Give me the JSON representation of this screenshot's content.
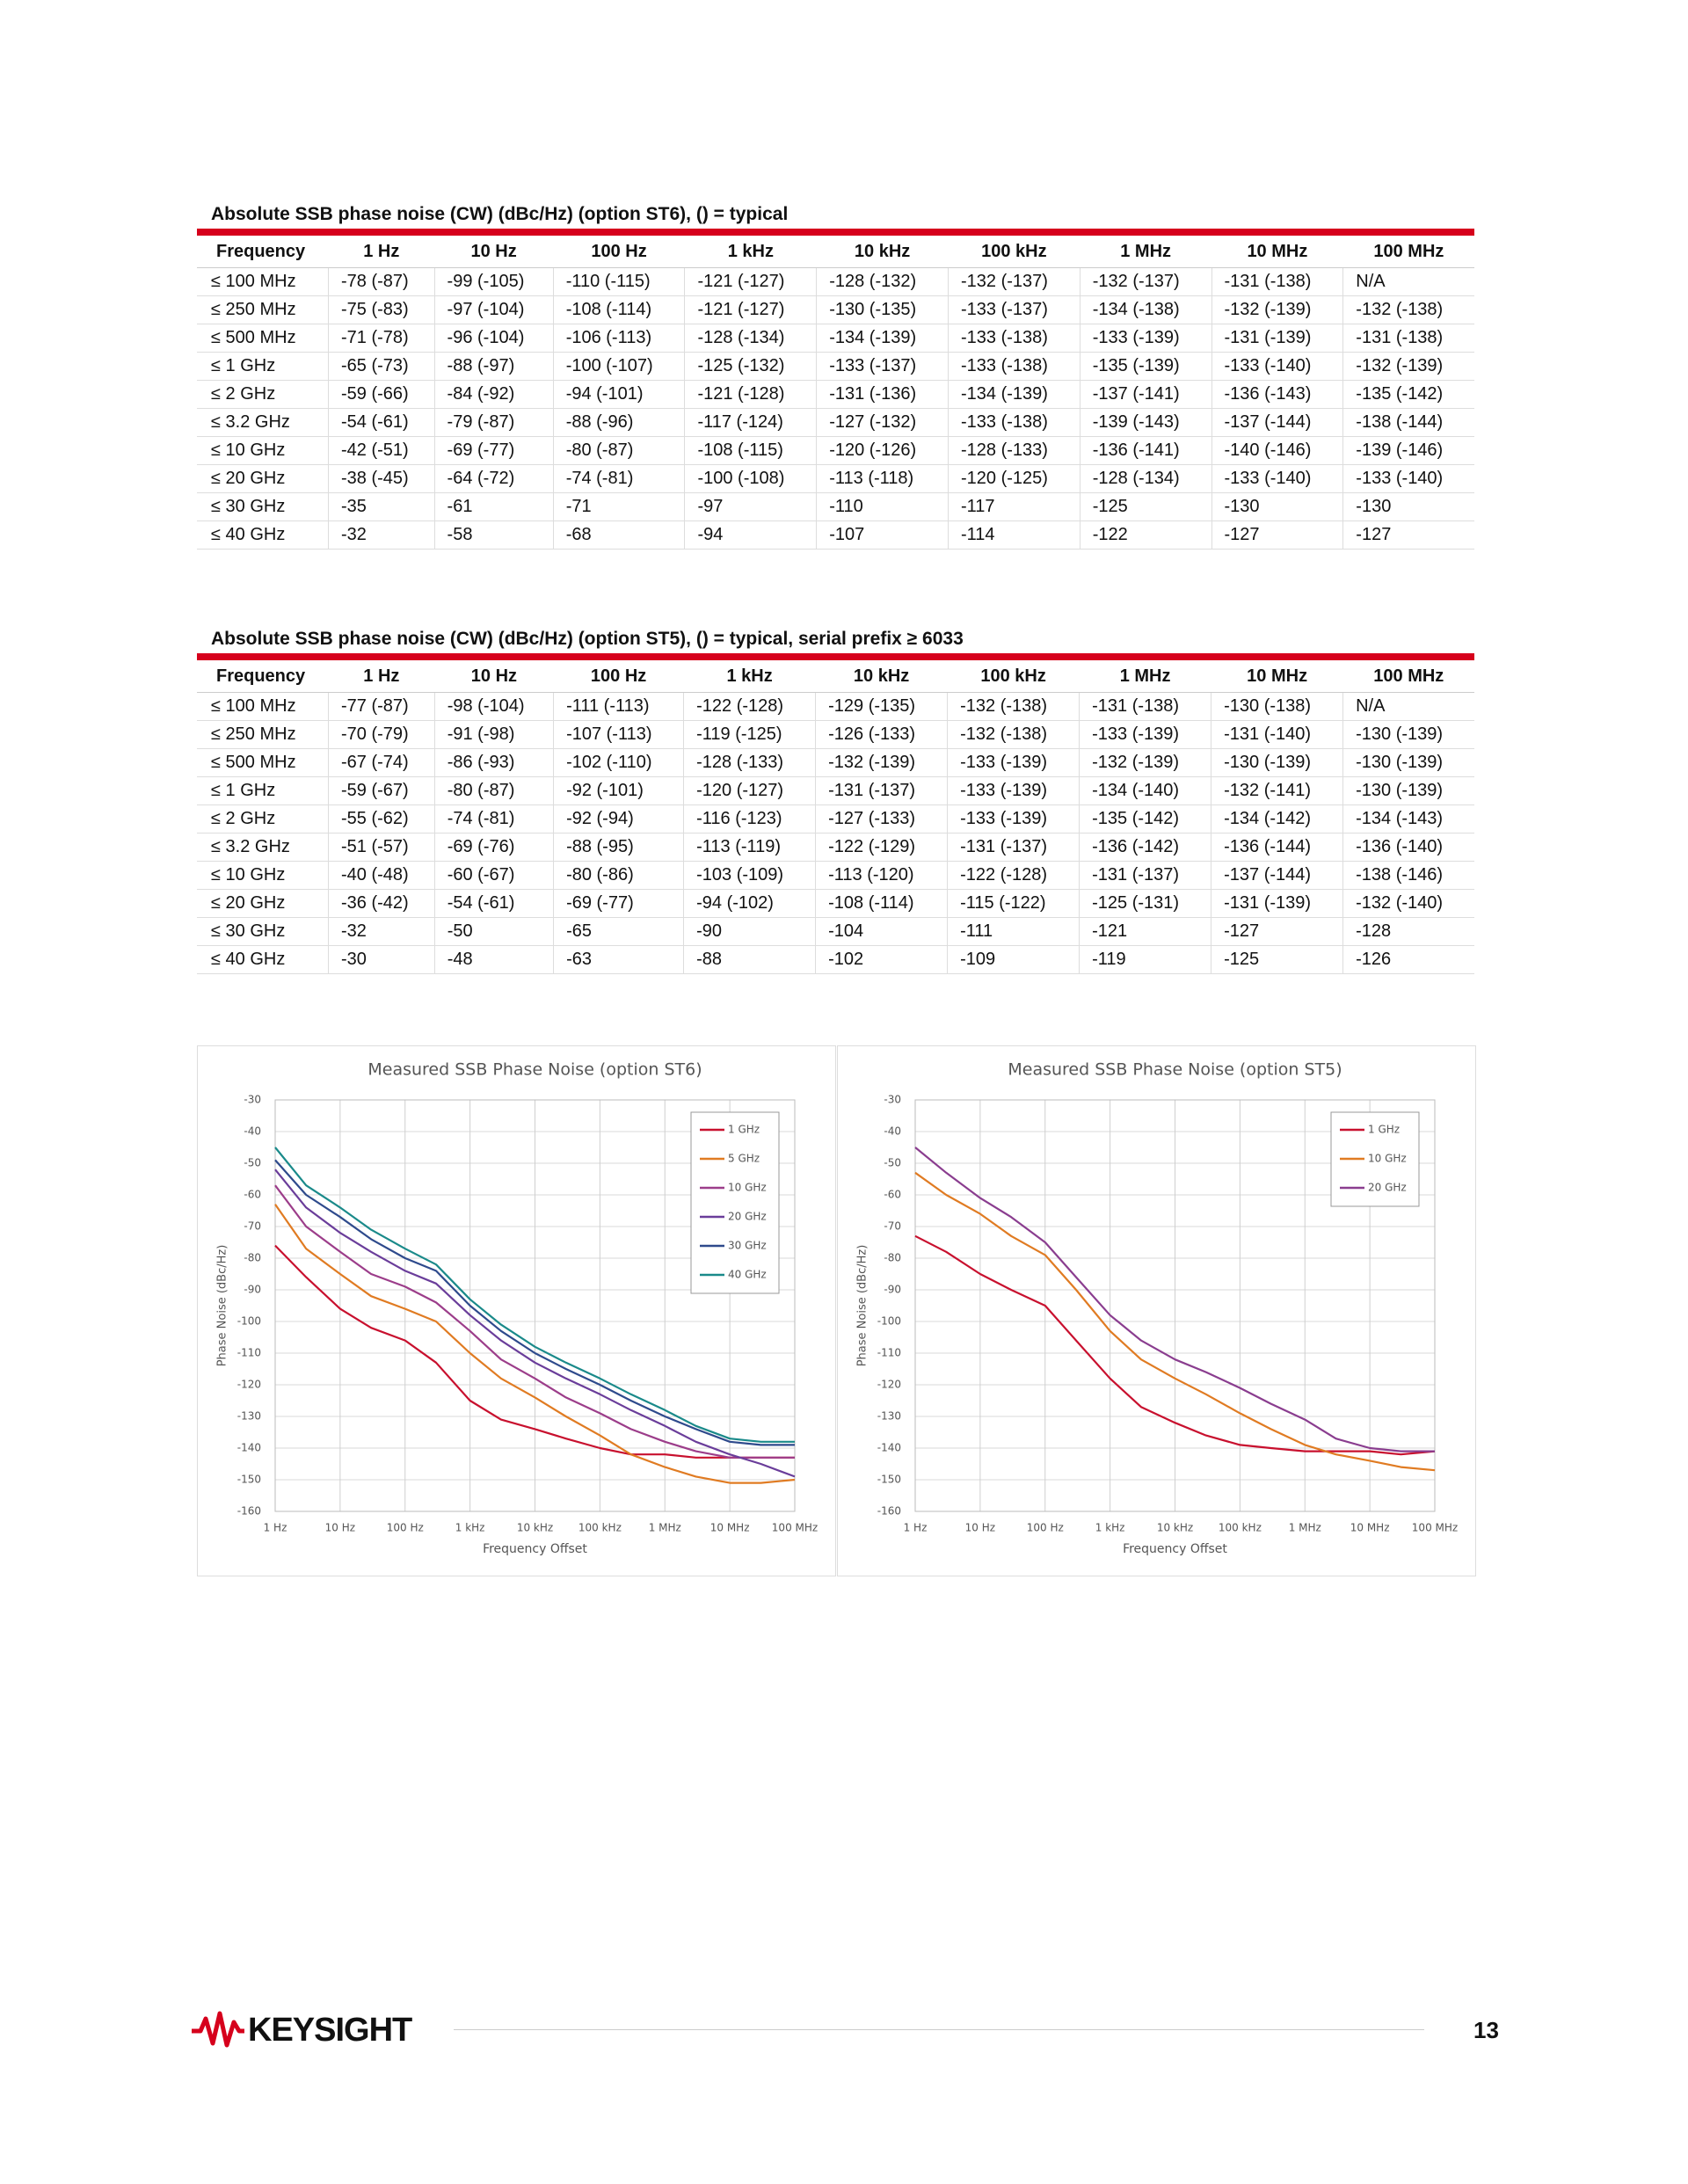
{
  "tables": [
    {
      "title": "Absolute SSB phase noise (CW) (dBc/Hz) (option ST6), () = typical",
      "header": [
        "Frequency",
        "1 Hz",
        "10 Hz",
        "100 Hz",
        "1 kHz",
        "10 kHz",
        "100 kHz",
        "1 MHz",
        "10 MHz",
        "100 MHz"
      ],
      "rows": [
        [
          "≤ 100 MHz",
          "-78 (-87)",
          "-99 (-105)",
          "-110 (-115)",
          "-121 (-127)",
          "-128 (-132)",
          "-132 (-137)",
          "-132 (-137)",
          "-131 (-138)",
          "N/A"
        ],
        [
          "≤ 250 MHz",
          "-75 (-83)",
          "-97 (-104)",
          "-108 (-114)",
          "-121 (-127)",
          "-130 (-135)",
          "-133 (-137)",
          "-134 (-138)",
          "-132 (-139)",
          "-132 (-138)"
        ],
        [
          "≤ 500 MHz",
          "-71 (-78)",
          "-96 (-104)",
          "-106 (-113)",
          "-128 (-134)",
          "-134 (-139)",
          "-133 (-138)",
          "-133 (-139)",
          "-131 (-139)",
          "-131 (-138)"
        ],
        [
          "≤ 1 GHz",
          "-65 (-73)",
          "-88 (-97)",
          "-100 (-107)",
          "-125 (-132)",
          "-133 (-137)",
          "-133 (-138)",
          "-135 (-139)",
          "-133 (-140)",
          "-132 (-139)"
        ],
        [
          "≤ 2 GHz",
          "-59 (-66)",
          "-84 (-92)",
          "-94 (-101)",
          "-121 (-128)",
          "-131 (-136)",
          "-134 (-139)",
          "-137 (-141)",
          "-136 (-143)",
          "-135 (-142)"
        ],
        [
          "≤ 3.2 GHz",
          "-54 (-61)",
          "-79 (-87)",
          "-88 (-96)",
          "-117 (-124)",
          "-127 (-132)",
          "-133 (-138)",
          "-139 (-143)",
          "-137 (-144)",
          "-138 (-144)"
        ],
        [
          "≤ 10 GHz",
          "-42 (-51)",
          "-69 (-77)",
          "-80 (-87)",
          "-108 (-115)",
          "-120 (-126)",
          "-128 (-133)",
          "-136 (-141)",
          "-140 (-146)",
          "-139 (-146)"
        ],
        [
          "≤ 20 GHz",
          "-38 (-45)",
          "-64 (-72)",
          "-74 (-81)",
          "-100 (-108)",
          "-113 (-118)",
          "-120 (-125)",
          "-128 (-134)",
          "-133 (-140)",
          "-133 (-140)"
        ],
        [
          "≤ 30 GHz",
          "-35",
          "-61",
          "-71",
          "-97",
          "-110",
          "-117",
          "-125",
          "-130",
          "-130"
        ],
        [
          "≤ 40 GHz",
          "-32",
          "-58",
          "-68",
          "-94",
          "-107",
          "-114",
          "-122",
          "-127",
          "-127"
        ]
      ]
    },
    {
      "title": "Absolute SSB phase noise (CW) (dBc/Hz) (option ST5), () = typical, serial prefix ≥ 6033",
      "header": [
        "Frequency",
        "1 Hz",
        "10 Hz",
        "100 Hz",
        "1 kHz",
        "10 kHz",
        "100 kHz",
        "1 MHz",
        "10 MHz",
        "100 MHz"
      ],
      "rows": [
        [
          "≤ 100 MHz",
          "-77 (-87)",
          "-98 (-104)",
          "-111 (-113)",
          "-122 (-128)",
          "-129 (-135)",
          "-132 (-138)",
          "-131 (-138)",
          "-130 (-138)",
          "N/A"
        ],
        [
          "≤ 250 MHz",
          "-70 (-79)",
          "-91 (-98)",
          "-107 (-113)",
          "-119 (-125)",
          "-126 (-133)",
          "-132 (-138)",
          "-133 (-139)",
          "-131 (-140)",
          "-130 (-139)"
        ],
        [
          "≤ 500 MHz",
          "-67 (-74)",
          "-86 (-93)",
          "-102 (-110)",
          "-128 (-133)",
          "-132 (-139)",
          "-133 (-139)",
          "-132 (-139)",
          "-130 (-139)",
          "-130 (-139)"
        ],
        [
          "≤ 1 GHz",
          "-59 (-67)",
          "-80 (-87)",
          "-92 (-101)",
          "-120 (-127)",
          "-131 (-137)",
          "-133 (-139)",
          "-134 (-140)",
          "-132 (-141)",
          "-130 (-139)"
        ],
        [
          "≤ 2 GHz",
          "-55 (-62)",
          "-74 (-81)",
          "-92 (-94)",
          "-116 (-123)",
          "-127 (-133)",
          "-133 (-139)",
          "-135 (-142)",
          "-134 (-142)",
          "-134 (-143)"
        ],
        [
          "≤ 3.2 GHz",
          "-51 (-57)",
          "-69 (-76)",
          "-88 (-95)",
          "-113 (-119)",
          "-122 (-129)",
          "-131 (-137)",
          "-136 (-142)",
          "-136 (-144)",
          "-136 (-140)"
        ],
        [
          "≤ 10 GHz",
          "-40 (-48)",
          "-60 (-67)",
          "-80 (-86)",
          "-103 (-109)",
          "-113 (-120)",
          "-122 (-128)",
          "-131 (-137)",
          "-137 (-144)",
          "-138 (-146)"
        ],
        [
          "≤ 20 GHz",
          "-36 (-42)",
          "-54 (-61)",
          "-69 (-77)",
          "-94 (-102)",
          "-108 (-114)",
          "-115 (-122)",
          "-125 (-131)",
          "-131 (-139)",
          "-132 (-140)"
        ],
        [
          "≤ 30 GHz",
          "-32",
          "-50",
          "-65",
          "-90",
          "-104",
          "-111",
          "-121",
          "-127",
          "-128"
        ],
        [
          "≤ 40 GHz",
          "-30",
          "-48",
          "-63",
          "-88",
          "-102",
          "-109",
          "-119",
          "-125",
          "-126"
        ]
      ]
    }
  ],
  "chart_data": [
    {
      "type": "line",
      "title": "Measured SSB Phase Noise (option ST6)",
      "x_label": "Frequency Offset",
      "y_label": "Phase Noise (dBc/Hz)",
      "x_scale": "log",
      "grid": true,
      "legend": "upper right",
      "xlim": [
        1,
        100000000
      ],
      "ylim": [
        -160,
        -30
      ],
      "xticks": [
        {
          "value": 1,
          "label": "1 Hz"
        },
        {
          "value": 10,
          "label": "10 Hz"
        },
        {
          "value": 100,
          "label": "100 Hz"
        },
        {
          "value": 1000,
          "label": "1 kHz"
        },
        {
          "value": 10000,
          "label": "10 kHz"
        },
        {
          "value": 100000,
          "label": "100 kHz"
        },
        {
          "value": 1000000,
          "label": "1 MHz"
        },
        {
          "value": 10000000,
          "label": "10 MHz"
        },
        {
          "value": 100000000,
          "label": "100 MHz"
        }
      ],
      "yticks": [
        -30,
        -40,
        -50,
        -60,
        -70,
        -80,
        -90,
        -100,
        -110,
        -120,
        -130,
        -140,
        -150,
        -160
      ],
      "x": [
        1,
        3,
        10,
        30,
        100,
        300,
        1000,
        3000,
        10000,
        30000,
        100000,
        300000,
        1000000,
        3000000,
        10000000,
        30000000,
        100000000
      ],
      "series": [
        {
          "name": "1 GHz",
          "color": "#c8102e",
          "values": [
            -76,
            -86,
            -96,
            -102,
            -106,
            -113,
            -125,
            -131,
            -134,
            -137,
            -140,
            -142,
            -142,
            -143,
            -143,
            -143,
            -143
          ]
        },
        {
          "name": "5 GHz",
          "color": "#e07b22",
          "values": [
            -63,
            -77,
            -85,
            -92,
            -96,
            -100,
            -110,
            -118,
            -124,
            -130,
            -136,
            -142,
            -146,
            -149,
            -151,
            -151,
            -150
          ]
        },
        {
          "name": "10 GHz",
          "color": "#9c3d8a",
          "values": [
            -57,
            -70,
            -78,
            -85,
            -89,
            -94,
            -103,
            -112,
            -118,
            -124,
            -129,
            -134,
            -138,
            -141,
            -143,
            -143,
            -143
          ]
        },
        {
          "name": "20 GHz",
          "color": "#6a3d9a",
          "values": [
            -52,
            -64,
            -72,
            -78,
            -84,
            -88,
            -98,
            -106,
            -113,
            -118,
            -123,
            -128,
            -133,
            -138,
            -142,
            -145,
            -149
          ]
        },
        {
          "name": "30 GHz",
          "color": "#2e4a8c",
          "values": [
            -49,
            -60,
            -67,
            -74,
            -80,
            -84,
            -95,
            -103,
            -110,
            -115,
            -120,
            -125,
            -130,
            -134,
            -138,
            -139,
            -139
          ]
        },
        {
          "name": "40 GHz",
          "color": "#1a8a8a",
          "values": [
            -45,
            -57,
            -64,
            -71,
            -77,
            -82,
            -93,
            -101,
            -108,
            -113,
            -118,
            -123,
            -128,
            -133,
            -137,
            -138,
            -138
          ]
        }
      ]
    },
    {
      "type": "line",
      "title": "Measured SSB Phase Noise (option ST5)",
      "x_label": "Frequency Offset",
      "y_label": "Phase Noise (dBc/Hz)",
      "x_scale": "log",
      "grid": true,
      "legend": "upper right",
      "xlim": [
        1,
        100000000
      ],
      "ylim": [
        -160,
        -30
      ],
      "xticks": [
        {
          "value": 1,
          "label": "1 Hz"
        },
        {
          "value": 10,
          "label": "10 Hz"
        },
        {
          "value": 100,
          "label": "100 Hz"
        },
        {
          "value": 1000,
          "label": "1 kHz"
        },
        {
          "value": 10000,
          "label": "10 kHz"
        },
        {
          "value": 100000,
          "label": "100 kHz"
        },
        {
          "value": 1000000,
          "label": "1 MHz"
        },
        {
          "value": 10000000,
          "label": "10 MHz"
        },
        {
          "value": 100000000,
          "label": "100 MHz"
        }
      ],
      "yticks": [
        -30,
        -40,
        -50,
        -60,
        -70,
        -80,
        -90,
        -100,
        -110,
        -120,
        -130,
        -140,
        -150,
        -160
      ],
      "x": [
        1,
        3,
        10,
        30,
        100,
        300,
        1000,
        3000,
        10000,
        30000,
        100000,
        300000,
        1000000,
        3000000,
        10000000,
        30000000,
        100000000
      ],
      "series": [
        {
          "name": "1 GHz",
          "color": "#c8102e",
          "values": [
            -73,
            -78,
            -85,
            -90,
            -95,
            -106,
            -118,
            -127,
            -132,
            -136,
            -139,
            -140,
            -141,
            -141,
            -141,
            -142,
            -141
          ]
        },
        {
          "name": "10 GHz",
          "color": "#e07b22",
          "values": [
            -53,
            -60,
            -66,
            -73,
            -79,
            -90,
            -103,
            -112,
            -118,
            -123,
            -129,
            -134,
            -139,
            -142,
            -144,
            -146,
            -147
          ]
        },
        {
          "name": "20 GHz",
          "color": "#8a3d8f",
          "values": [
            -45,
            -53,
            -61,
            -67,
            -75,
            -86,
            -98,
            -106,
            -112,
            -116,
            -121,
            -126,
            -131,
            -137,
            -140,
            -141,
            -141
          ]
        }
      ]
    }
  ],
  "footer": {
    "brand": "KEYSIGHT",
    "page": "13"
  }
}
